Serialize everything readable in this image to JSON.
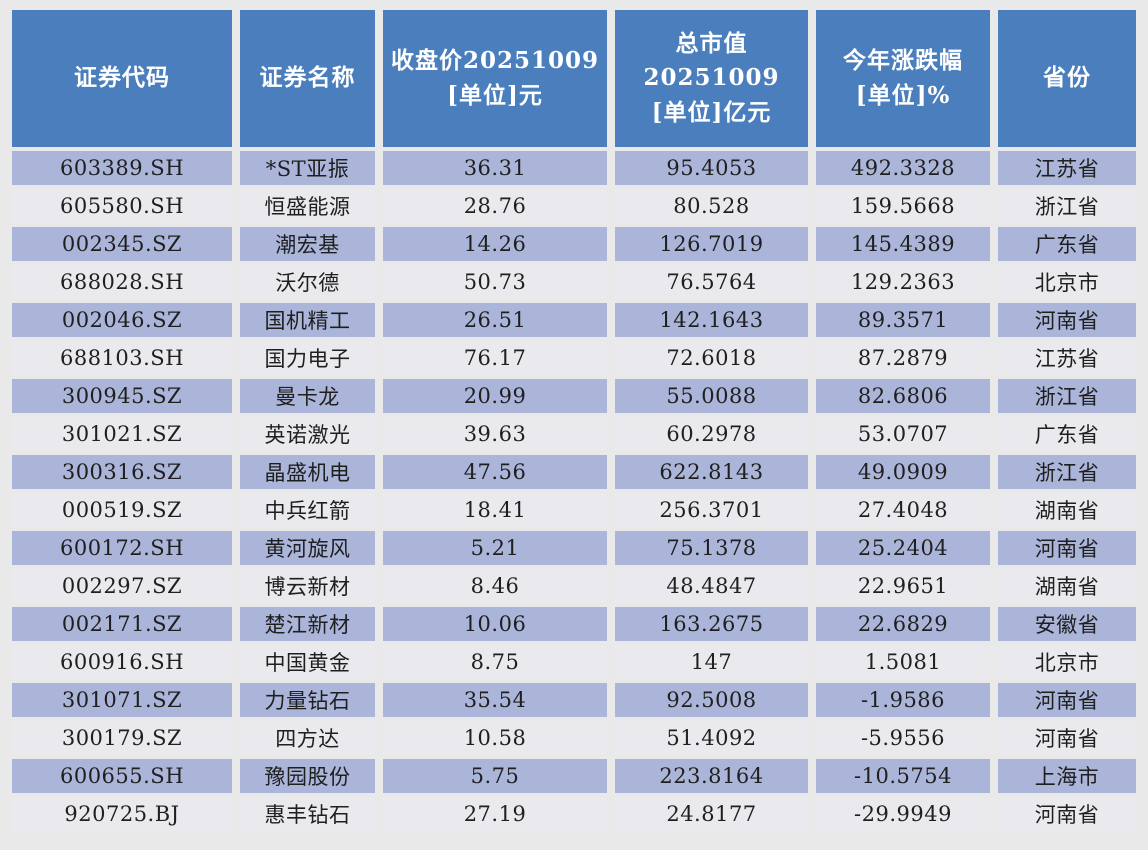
{
  "colors": {
    "page_bg": "#e9e9e9",
    "header_bg": "#4a7ebc",
    "header_text": "#ffffff",
    "row_odd_bg": "#aab5d9",
    "row_even_bg": "#e9e9ee",
    "cell_text": "#1f1f1f"
  },
  "chart_data": {
    "type": "table",
    "columns": [
      "证券代码",
      "证券名称",
      "收盘价20251009\n[单位]元",
      "总市值20251009\n[单位]亿元",
      "今年涨跌幅\n[单位]%",
      "省份"
    ],
    "rows": [
      [
        "603389.SH",
        "*ST亚振",
        "36.31",
        "95.4053",
        "492.3328",
        "江苏省"
      ],
      [
        "605580.SH",
        "恒盛能源",
        "28.76",
        "80.528",
        "159.5668",
        "浙江省"
      ],
      [
        "002345.SZ",
        "潮宏基",
        "14.26",
        "126.7019",
        "145.4389",
        "广东省"
      ],
      [
        "688028.SH",
        "沃尔德",
        "50.73",
        "76.5764",
        "129.2363",
        "北京市"
      ],
      [
        "002046.SZ",
        "国机精工",
        "26.51",
        "142.1643",
        "89.3571",
        "河南省"
      ],
      [
        "688103.SH",
        "国力电子",
        "76.17",
        "72.6018",
        "87.2879",
        "江苏省"
      ],
      [
        "300945.SZ",
        "曼卡龙",
        "20.99",
        "55.0088",
        "82.6806",
        "浙江省"
      ],
      [
        "301021.SZ",
        "英诺激光",
        "39.63",
        "60.2978",
        "53.0707",
        "广东省"
      ],
      [
        "300316.SZ",
        "晶盛机电",
        "47.56",
        "622.8143",
        "49.0909",
        "浙江省"
      ],
      [
        "000519.SZ",
        "中兵红箭",
        "18.41",
        "256.3701",
        "27.4048",
        "湖南省"
      ],
      [
        "600172.SH",
        "黄河旋风",
        "5.21",
        "75.1378",
        "25.2404",
        "河南省"
      ],
      [
        "002297.SZ",
        "博云新材",
        "8.46",
        "48.4847",
        "22.9651",
        "湖南省"
      ],
      [
        "002171.SZ",
        "楚江新材",
        "10.06",
        "163.2675",
        "22.6829",
        "安徽省"
      ],
      [
        "600916.SH",
        "中国黄金",
        "8.75",
        "147",
        "1.5081",
        "北京市"
      ],
      [
        "301071.SZ",
        "力量钻石",
        "35.54",
        "92.5008",
        "-1.9586",
        "河南省"
      ],
      [
        "300179.SZ",
        "四方达",
        "10.58",
        "51.4092",
        "-5.9556",
        "河南省"
      ],
      [
        "600655.SH",
        "豫园股份",
        "5.75",
        "223.8164",
        "-10.5754",
        "上海市"
      ],
      [
        "920725.BJ",
        "惠丰钻石",
        "27.19",
        "24.8177",
        "-29.9949",
        "河南省"
      ]
    ]
  }
}
